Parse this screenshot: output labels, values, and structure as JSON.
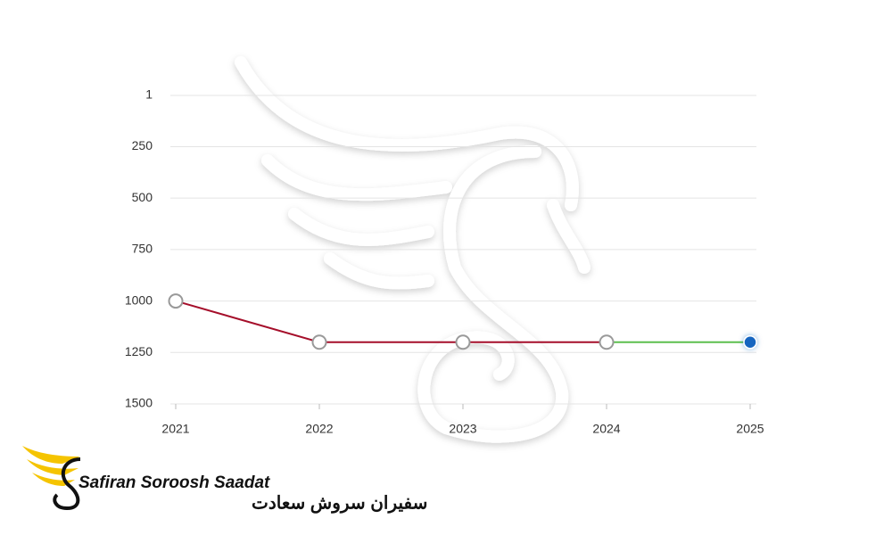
{
  "chart_data": {
    "type": "line",
    "categories": [
      "2021",
      "2022",
      "2023",
      "2024",
      "2025"
    ],
    "series": [
      {
        "color": "#a50e2a",
        "values": [
          1000,
          1200,
          1200,
          1200,
          1200
        ]
      }
    ],
    "last_segment_color": "#5cbf4e",
    "last_point_color": "#1565c0",
    "ylim": [
      1,
      1500
    ],
    "yticks": [
      1,
      250,
      500,
      750,
      1000,
      1250,
      1500
    ],
    "invert_y": true,
    "grid": true
  },
  "logo": {
    "name": "Safiran Soroosh Saadat",
    "name_fa": "سفیران سروش سعادت"
  }
}
